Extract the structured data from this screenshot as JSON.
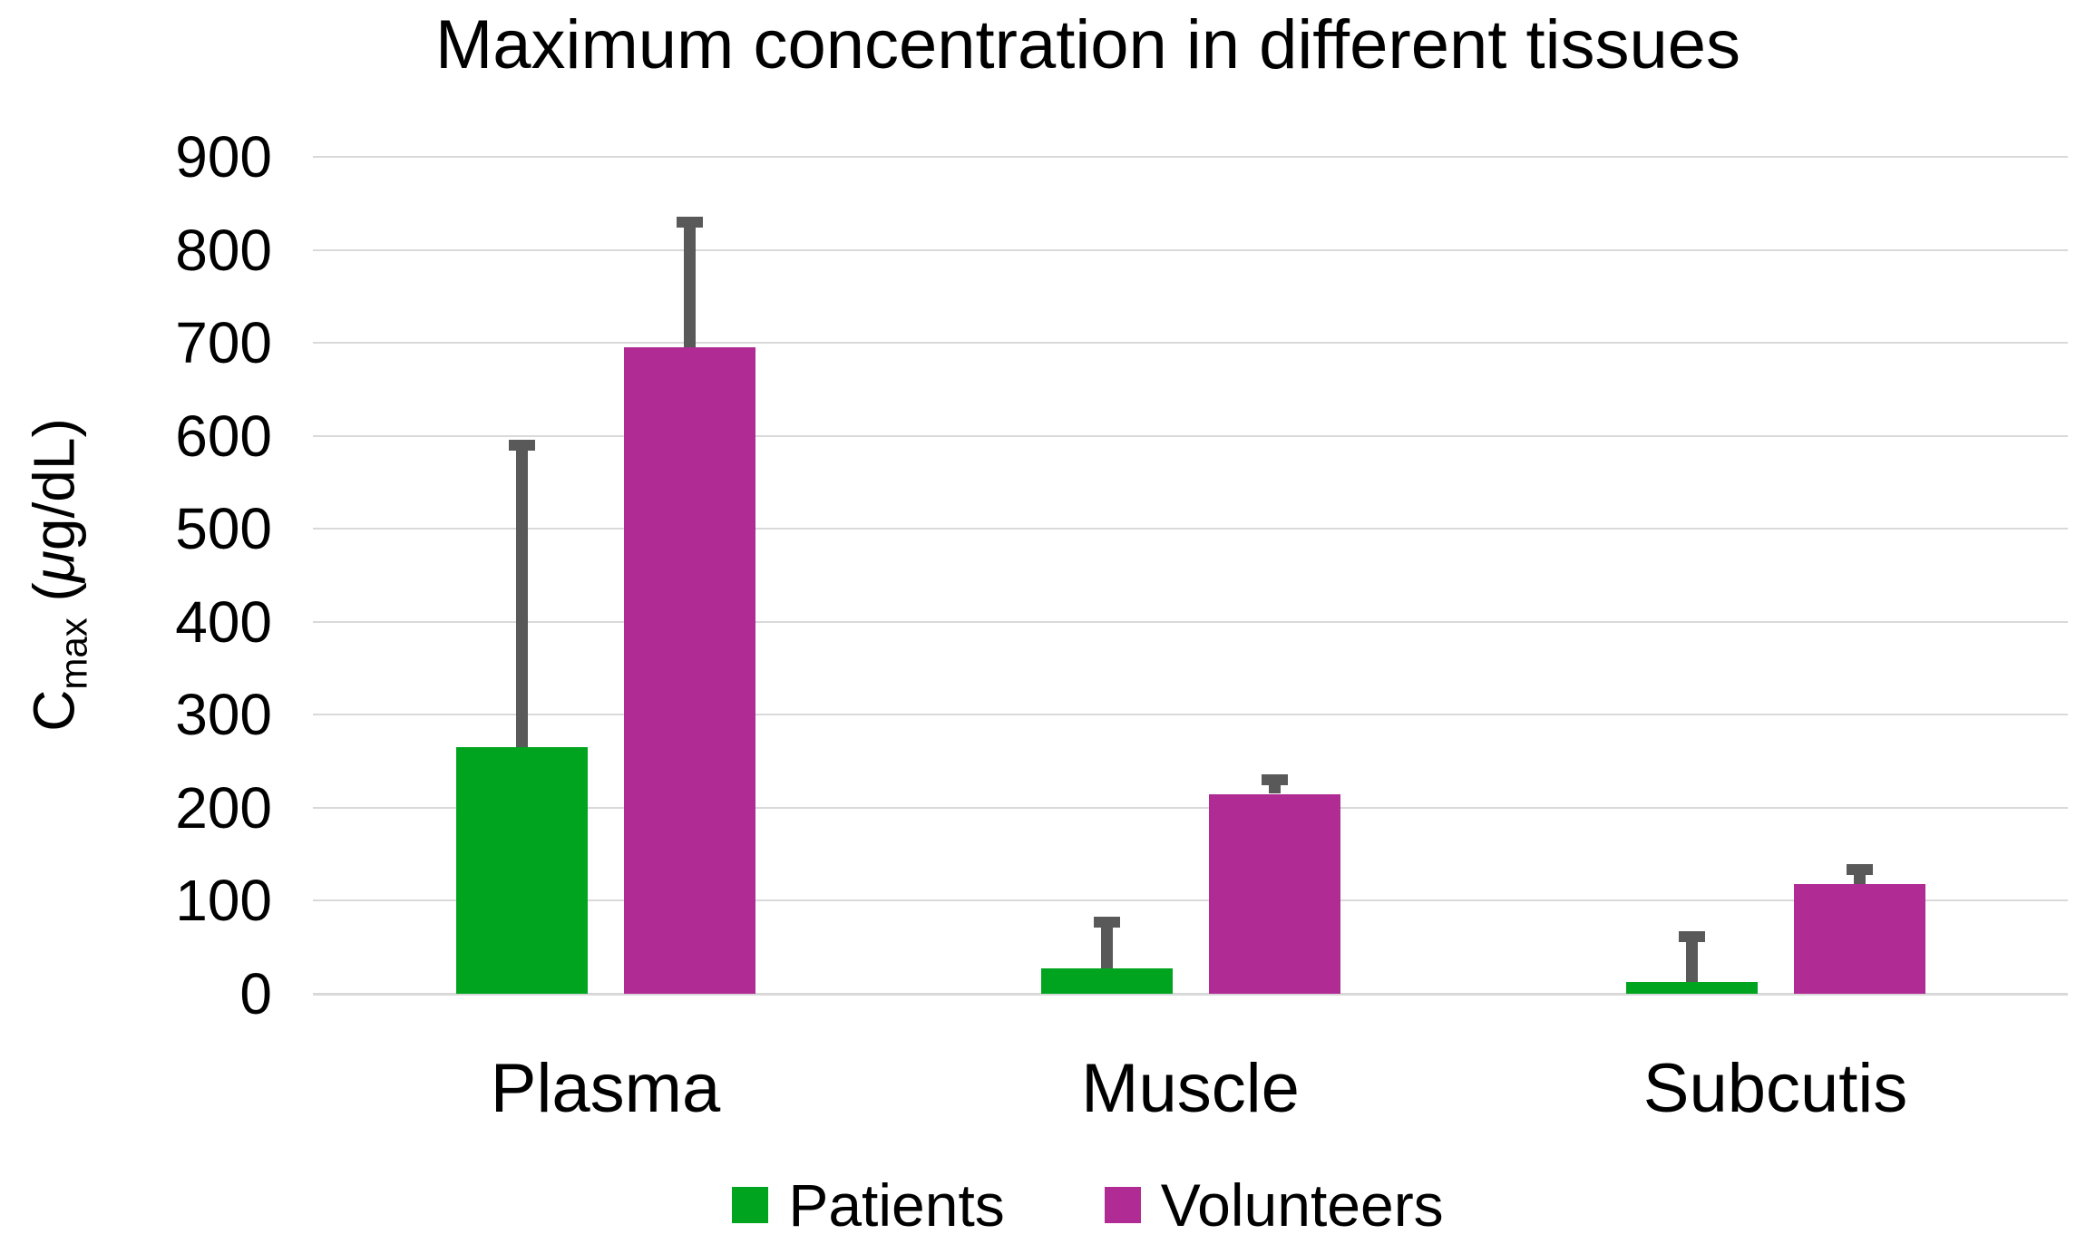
{
  "chart_data": {
    "type": "bar",
    "title": "Maximum concentration in different tissues",
    "ylabel": {
      "base": "C",
      "sub": "max",
      "unit_pre": " (",
      "unit_mu": "μ",
      "unit_post": "g/dL)"
    },
    "categories": [
      "Plasma",
      "Muscle",
      "Subcutis"
    ],
    "series": [
      {
        "name": "Patients",
        "color": "#00A41E",
        "values": [
          265,
          27,
          13
        ],
        "error_plus": [
          325,
          50,
          48
        ]
      },
      {
        "name": "Volunteers",
        "color": "#B12B94",
        "values": [
          695,
          215,
          118
        ],
        "error_plus": [
          135,
          15,
          16
        ]
      }
    ],
    "ylim": [
      0,
      900
    ],
    "yticks": [
      0,
      100,
      200,
      300,
      400,
      500,
      600,
      700,
      800,
      900
    ],
    "grid": "horizontal",
    "legend_position": "bottom",
    "error_bar_color": "#595959",
    "gridline_color": "#D9D9D9",
    "text_color": "#000000",
    "background": "#FFFFFF"
  }
}
